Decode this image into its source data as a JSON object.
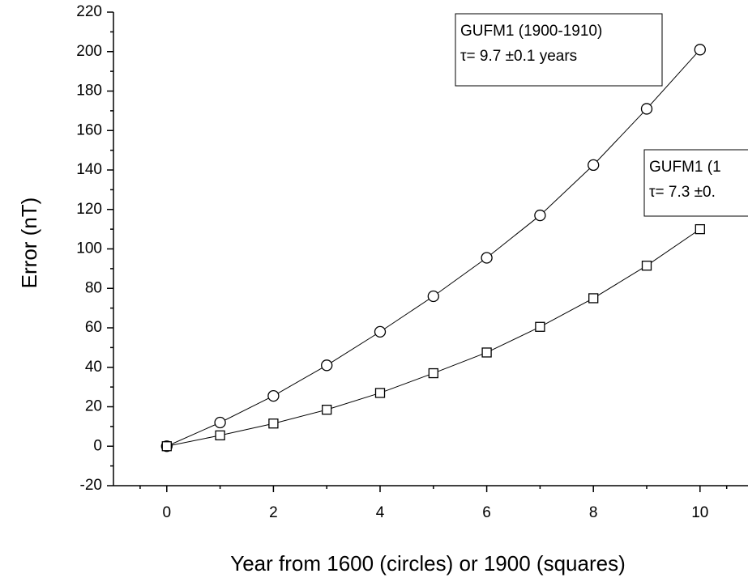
{
  "chart_data": {
    "type": "line",
    "xlabel": "Year from 1600 (circles) or 1900 (squares)",
    "ylabel": "Error (nT)",
    "x": [
      0,
      1,
      2,
      3,
      4,
      5,
      6,
      7,
      8,
      9,
      10
    ],
    "series": [
      {
        "marker": "circle",
        "color": "#000000",
        "values": [
          0,
          12,
          25.5,
          41,
          58,
          76,
          95.5,
          117,
          142.5,
          171,
          201
        ]
      },
      {
        "marker": "square",
        "color": "#000000",
        "values": [
          0,
          5.5,
          11.5,
          18.5,
          27,
          37,
          47.5,
          60.5,
          75,
          91.5,
          110
        ]
      }
    ],
    "xlim": [
      -1,
      11
    ],
    "xticks": [
      0,
      2,
      4,
      6,
      8,
      10
    ],
    "ylim": [
      -20,
      220
    ],
    "yticks": [
      -20,
      0,
      20,
      40,
      60,
      80,
      100,
      120,
      140,
      160,
      180,
      200,
      220
    ],
    "annotations": [
      {
        "lines": [
          "GUFM1 (1900-1910)",
          "τ= 9.7  ±0.1 years"
        ]
      },
      {
        "lines": [
          "GUFM1 (1",
          "τ= 7.3  ±0."
        ]
      }
    ]
  }
}
